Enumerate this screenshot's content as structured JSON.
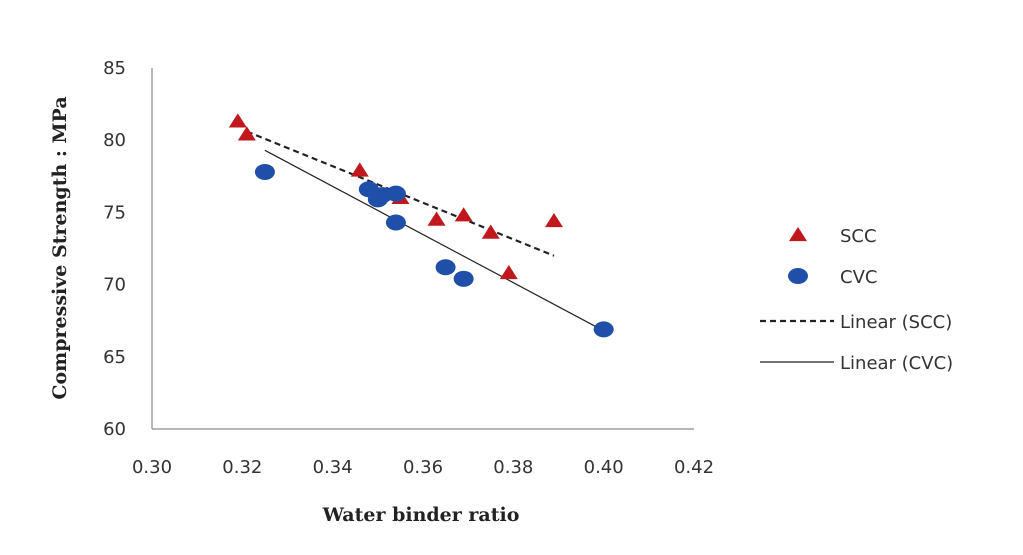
{
  "chart_data": {
    "type": "scatter",
    "xlabel": "Water binder ratio",
    "ylabel": "Compressive Strength : MPa",
    "xlim": [
      0.3,
      0.42
    ],
    "ylim": [
      60,
      85
    ],
    "xticks": [
      "0.30",
      "0.32",
      "0.34",
      "0.36",
      "0.38",
      "0.40",
      "0.42"
    ],
    "yticks": [
      "60",
      "65",
      "70",
      "75",
      "80",
      "85"
    ],
    "grid": false,
    "legend_position": "right",
    "series": [
      {
        "name": "SCC",
        "marker": "triangle",
        "color": "#c0181c",
        "points": [
          [
            0.319,
            81.3
          ],
          [
            0.321,
            80.4
          ],
          [
            0.346,
            77.9
          ],
          [
            0.355,
            76.0
          ],
          [
            0.363,
            74.5
          ],
          [
            0.369,
            74.8
          ],
          [
            0.375,
            73.6
          ],
          [
            0.379,
            70.8
          ],
          [
            0.389,
            74.4
          ]
        ]
      },
      {
        "name": "CVC",
        "marker": "circle",
        "color": "#1f4fa8",
        "points": [
          [
            0.325,
            77.8
          ],
          [
            0.348,
            76.6
          ],
          [
            0.35,
            75.9
          ],
          [
            0.351,
            76.2
          ],
          [
            0.354,
            76.3
          ],
          [
            0.354,
            74.3
          ],
          [
            0.365,
            71.2
          ],
          [
            0.369,
            70.4
          ],
          [
            0.4,
            66.9
          ]
        ]
      }
    ],
    "trendlines": [
      {
        "name": "Linear (SCC)",
        "style": "dashed",
        "color": "#222222",
        "x": [
          0.321,
          0.389
        ],
        "y": [
          80.6,
          72.0
        ]
      },
      {
        "name": "Linear (CVC)",
        "style": "solid",
        "color": "#222222",
        "x": [
          0.325,
          0.4
        ],
        "y": [
          79.3,
          66.8
        ]
      }
    ]
  }
}
